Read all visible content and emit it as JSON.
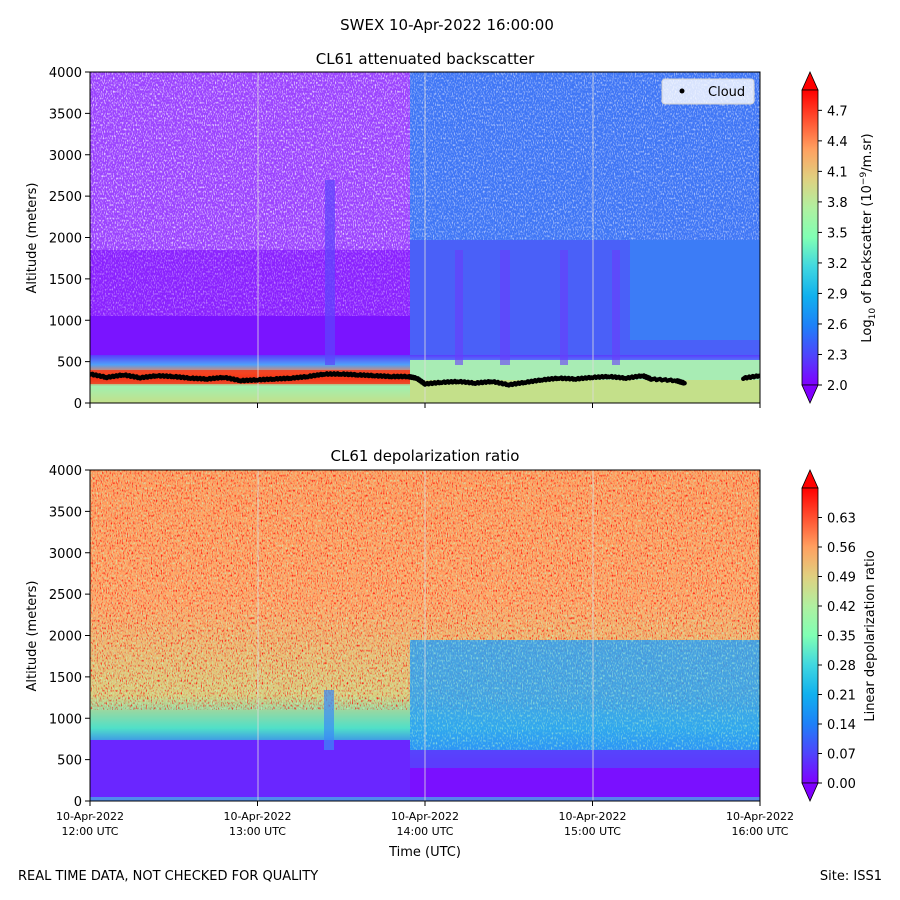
{
  "figure": {
    "suptitle": "SWEX 10-Apr-2022 16:00:00",
    "footer_left": "REAL TIME DATA, NOT CHECKED FOR QUALITY",
    "footer_right": "Site: ISS1",
    "xlabel": "Time (UTC)"
  },
  "chart_data": [
    {
      "type": "heatmap",
      "title": "CL61 attenuated backscatter",
      "ylabel": "Altitude (meters)",
      "ylim": [
        0,
        4000
      ],
      "y_ticks": [
        "0",
        "500",
        "1000",
        "1500",
        "2000",
        "2500",
        "3000",
        "3500",
        "4000"
      ],
      "x_range_hours_utc": [
        12,
        16
      ],
      "colorbar": {
        "label_prefix": "Log",
        "label_sub": "10",
        "label_mid": " of backscatter (10",
        "label_sup": "−9",
        "label_suffix": "/m.sr)",
        "range": [
          2.0,
          4.9
        ],
        "ticks": [
          "2.0",
          "2.3",
          "2.6",
          "2.9",
          "3.2",
          "3.5",
          "3.8",
          "4.1",
          "4.4",
          "4.7"
        ],
        "colormap": "rainbow",
        "extend": "both"
      },
      "legend": {
        "entries": [
          "Cloud"
        ],
        "placement": "top-right"
      },
      "cloud_base_series": {
        "name": "Cloud",
        "x_hours": [
          12.0,
          12.1,
          12.2,
          12.3,
          12.4,
          12.5,
          12.6,
          12.7,
          12.8,
          12.9,
          13.0,
          13.1,
          13.2,
          13.3,
          13.4,
          13.5,
          13.6,
          13.7,
          13.8,
          13.9,
          13.95,
          14.0,
          14.1,
          14.2,
          14.3,
          14.4,
          14.5,
          14.6,
          14.7,
          14.8,
          14.9,
          15.0,
          15.1,
          15.2,
          15.3,
          15.35,
          15.5,
          15.55,
          15.9,
          16.0
        ],
        "y_m": [
          350,
          310,
          340,
          305,
          330,
          320,
          300,
          290,
          310,
          270,
          280,
          290,
          300,
          320,
          350,
          350,
          340,
          330,
          320,
          320,
          300,
          230,
          250,
          260,
          240,
          260,
          220,
          250,
          280,
          300,
          290,
          310,
          320,
          300,
          330,
          290,
          270,
          240,
          300,
          330
        ]
      }
    },
    {
      "type": "heatmap",
      "title": "CL61 depolarization ratio",
      "ylabel": "Altitude (meters)",
      "ylim": [
        0,
        4000
      ],
      "y_ticks": [
        "0",
        "500",
        "1000",
        "1500",
        "2000",
        "2500",
        "3000",
        "3500",
        "4000"
      ],
      "x_range_hours_utc": [
        12,
        16
      ],
      "x_ticks": [
        {
          "line1": "10-Apr-2022",
          "line2": "12:00 UTC"
        },
        {
          "line1": "10-Apr-2022",
          "line2": "13:00 UTC"
        },
        {
          "line1": "10-Apr-2022",
          "line2": "14:00 UTC"
        },
        {
          "line1": "10-Apr-2022",
          "line2": "15:00 UTC"
        },
        {
          "line1": "10-Apr-2022",
          "line2": "16:00 UTC"
        }
      ],
      "colorbar": {
        "label": "Linear depolarization ratio",
        "range": [
          0.0,
          0.7
        ],
        "ticks": [
          "0.00",
          "0.07",
          "0.14",
          "0.21",
          "0.28",
          "0.35",
          "0.42",
          "0.49",
          "0.56",
          "0.63"
        ],
        "colormap": "rainbow",
        "extend": "both"
      }
    }
  ]
}
